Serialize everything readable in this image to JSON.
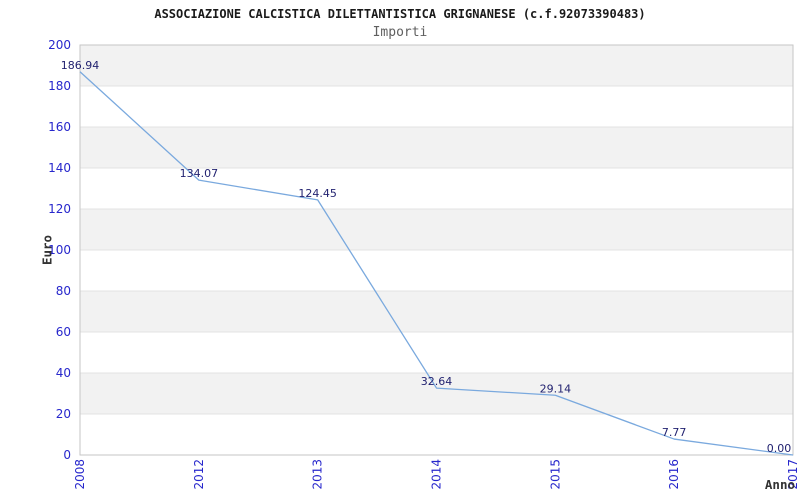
{
  "header": {
    "title": "ASSOCIAZIONE CALCISTICA DILETTANTISTICA GRIGNANESE (c.f.92073390483)",
    "subtitle": "Importi"
  },
  "chart_data": {
    "type": "line",
    "title": "ASSOCIAZIONE CALCISTICA DILETTANTISTICA GRIGNANESE (c.f.92073390483)",
    "subtitle": "Importi",
    "xlabel": "Anno",
    "ylabel": "Euro",
    "categories": [
      "2008",
      "2012",
      "2013",
      "2014",
      "2015",
      "2016",
      "2017"
    ],
    "values": [
      186.94,
      134.07,
      124.45,
      32.64,
      29.14,
      7.77,
      0.0
    ],
    "point_labels": [
      "186.94",
      "134.07",
      "124.45",
      "32.64",
      "29.14",
      "7.77",
      "0.00"
    ],
    "ylim": [
      0,
      200
    ],
    "ytick_step": 20,
    "yticks": [
      0,
      20,
      40,
      60,
      80,
      100,
      120,
      140,
      160,
      180,
      200
    ],
    "grid": true,
    "legend": "none",
    "band_fill_alternate": true,
    "colors": {
      "line": "#7aa9de",
      "band": "#f2f2f2",
      "gridline": "#e3e3e3",
      "axis_border": "#c6c6c6",
      "tick_label": "#2727cc",
      "data_label": "#222270",
      "title": "#1a1a1a",
      "subtitle": "#5f5f5f",
      "axis_title": "#333333",
      "background": "#ffffff"
    }
  }
}
